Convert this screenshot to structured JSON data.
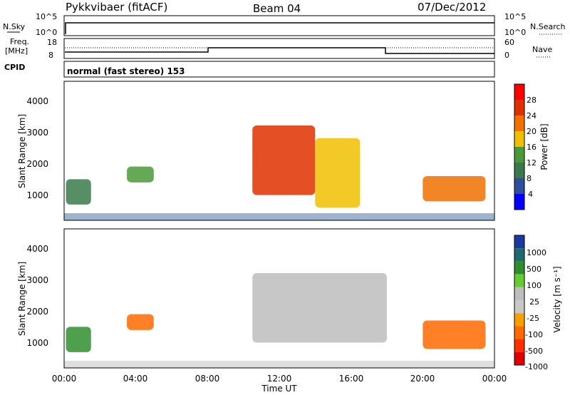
{
  "header": {
    "title": "Pykkvibaer (fitACF)",
    "beam": "Beam 04",
    "date": "07/Dec/2012"
  },
  "status_panels": {
    "nsky_label": "N.Sky",
    "nsky_ticks": [
      "10^5",
      "10^0"
    ],
    "nsearch_label": "N.Search",
    "nsearch_ticks": [
      "10^5",
      "10^0"
    ],
    "freq_label_line1": "Freq.",
    "freq_label_line2": "[MHz]",
    "freq_ticks": [
      "18",
      "8"
    ],
    "nave_label": "Nave",
    "nave_ticks": [
      "60",
      "0"
    ],
    "cpid_label": "CPID",
    "cpid_text": "normal (fast stereo) 153"
  },
  "colors": {
    "power": [
      "#0000ff",
      "#2e4f9a",
      "#3a7a4a",
      "#4a9a3a",
      "#f0c000",
      "#f07000",
      "#e03000",
      "#ff0000"
    ],
    "velocity": [
      "#1a3aa0",
      "#1f6a6f",
      "#2f8f2f",
      "#66cc33",
      "#bdbdbd",
      "#c8c8c8",
      "#f5a000",
      "#ff6a00",
      "#ff3000",
      "#e00000"
    ]
  },
  "chart_data": [
    {
      "type": "heatmap",
      "name": "power",
      "ylabel": "Slant Range [km]",
      "yticks": [
        "1000",
        "2000",
        "3000",
        "4000"
      ],
      "ylim": [
        200,
        4600
      ],
      "xlim": [
        0,
        24
      ],
      "cbar_label": "Power [dB]",
      "cbar_ticks": [
        "4",
        "8",
        "12",
        "16",
        "20",
        "24",
        "28"
      ],
      "cbar_range": [
        0,
        32
      ],
      "regions": [
        {
          "t0": 0.1,
          "t1": 1.5,
          "r0": 700,
          "r1": 1500,
          "value": 10
        },
        {
          "t0": 3.5,
          "t1": 5.0,
          "r0": 1400,
          "r1": 1900,
          "value": 14
        },
        {
          "t0": 10.5,
          "t1": 14.0,
          "r0": 1000,
          "r1": 3200,
          "value": 24
        },
        {
          "t0": 14.0,
          "t1": 16.5,
          "r0": 600,
          "r1": 2800,
          "value": 18
        },
        {
          "t0": 20.0,
          "t1": 23.5,
          "r0": 800,
          "r1": 1600,
          "value": 20
        }
      ]
    },
    {
      "type": "heatmap",
      "name": "velocity",
      "xlabel": "Time UT",
      "ylabel": "Slant Range [km]",
      "yticks": [
        "1000",
        "2000",
        "3000",
        "4000"
      ],
      "ylim": [
        200,
        4600
      ],
      "xlim": [
        0,
        24
      ],
      "xticks": [
        "00:00",
        "04:00",
        "08:00",
        "12:00",
        "16:00",
        "20:00",
        "00:00"
      ],
      "cbar_label": "Velocity [m s⁻¹]",
      "cbar_ticks": [
        "1000",
        "500",
        "100",
        "25",
        "-25",
        "-100",
        "-500",
        "-1000"
      ],
      "regions": [
        {
          "t0": 0.1,
          "t1": 1.5,
          "r0": 700,
          "r1": 1500,
          "value": 100
        },
        {
          "t0": 3.5,
          "t1": 5.0,
          "r0": 1400,
          "r1": 1900,
          "value": -500
        },
        {
          "t0": 10.5,
          "t1": 18.0,
          "r0": 1000,
          "r1": 3200,
          "value": 0
        },
        {
          "t0": 20.0,
          "t1": 23.5,
          "r0": 800,
          "r1": 1700,
          "value": -500
        }
      ]
    }
  ]
}
